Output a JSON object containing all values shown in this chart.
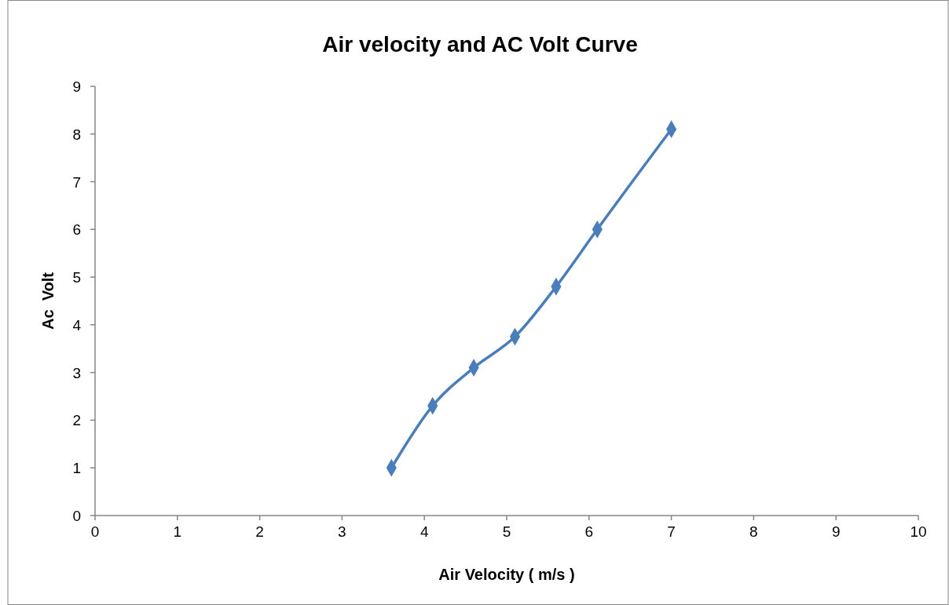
{
  "chart_data": {
    "type": "line",
    "title": "Air velocity and AC Volt Curve",
    "xlabel": "Air Velocity ( m/s )",
    "ylabel": "Ac  Volt",
    "x": [
      3.6,
      4.1,
      4.6,
      5.1,
      5.6,
      6.1,
      7.0
    ],
    "series": [
      {
        "color": "#4a7ebb",
        "values": [
          1,
          2.3,
          3.1,
          3.75,
          4.8,
          6.0,
          8.1
        ]
      }
    ],
    "xlim": [
      0,
      10
    ],
    "xticks": [
      0,
      1,
      2,
      3,
      4,
      5,
      6,
      7,
      8,
      9,
      10
    ],
    "ylim": [
      0,
      9
    ],
    "yticks": [
      0,
      1,
      2,
      3,
      4,
      5,
      6,
      7,
      8,
      9
    ],
    "marker": "diamond",
    "line_style": "solid"
  }
}
